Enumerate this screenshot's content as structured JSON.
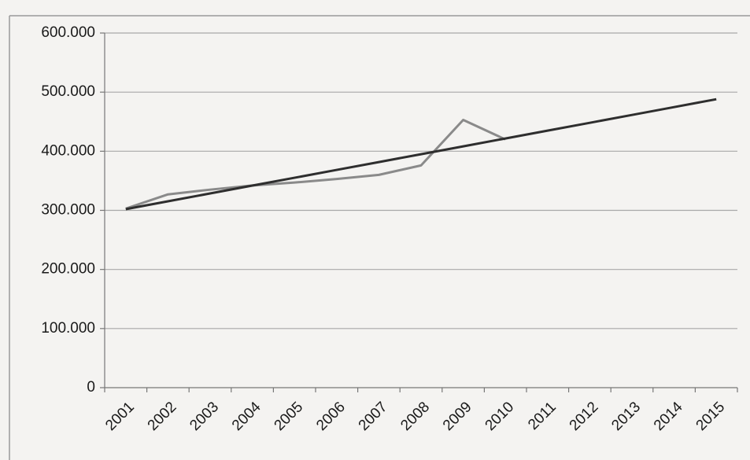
{
  "chart_data": {
    "type": "line",
    "categories": [
      "2001",
      "2002",
      "2003",
      "2004",
      "2005",
      "2006",
      "2007",
      "2008",
      "2009",
      "2010",
      "2011",
      "2012",
      "2013",
      "2014",
      "2015"
    ],
    "series": [
      {
        "color": "#8a8a8a",
        "values": [
          303000,
          327000,
          335000,
          342000,
          347000,
          353000,
          360000,
          376000,
          453000,
          420000,
          null,
          null,
          null,
          null,
          null
        ]
      },
      {
        "color": "#2e2e2e",
        "values": [
          302000,
          315300,
          328600,
          341900,
          355100,
          368400,
          381700,
          395000,
          408300,
          421600,
          434900,
          448100,
          461400,
          474700,
          488000
        ]
      }
    ],
    "ylim": [
      0,
      600000
    ],
    "yticks": [
      0,
      {
        "value": 100000,
        "label": "100.000"
      },
      {
        "value": 200000,
        "label": "200.000"
      },
      {
        "value": 300000,
        "label": "300.000"
      },
      {
        "value": 400000,
        "label": "400.000"
      },
      {
        "value": 500000,
        "label": "500.000"
      },
      {
        "value": 600000,
        "label": "600.000"
      }
    ],
    "grid": true
  }
}
